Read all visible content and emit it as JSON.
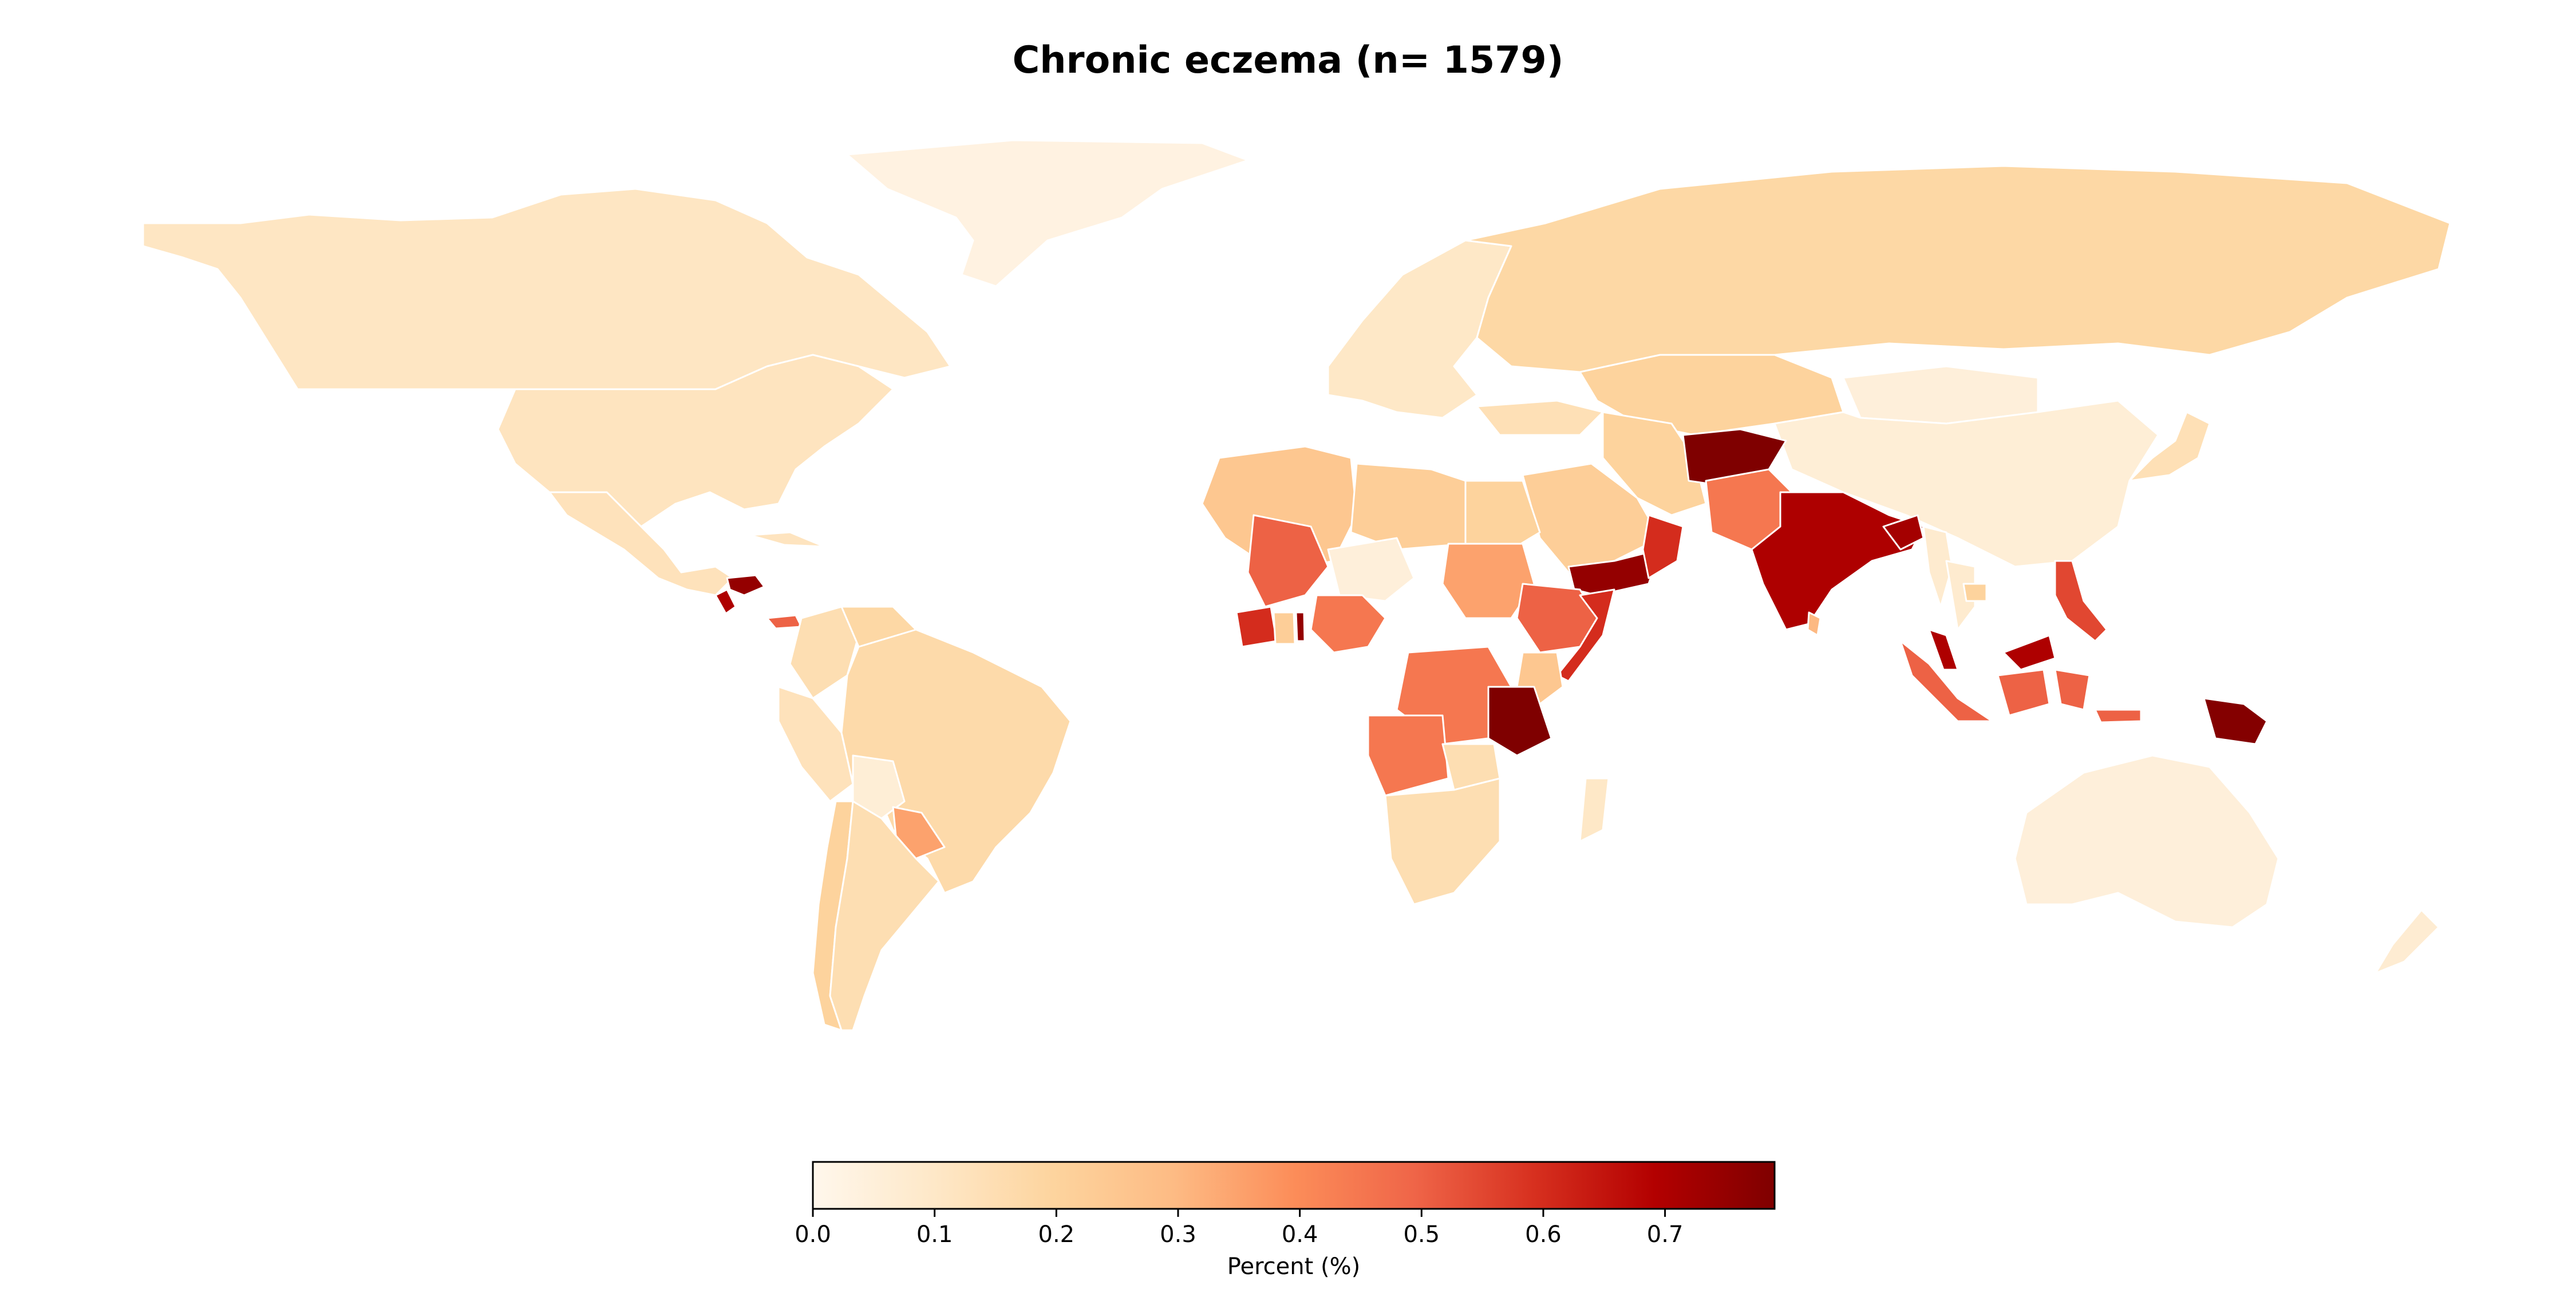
{
  "title": "Chronic eczema (n= 1579)",
  "colorbar": {
    "label": "Percent (%)",
    "ticks": [
      "0.0",
      "0.1",
      "0.2",
      "0.3",
      "0.4",
      "0.5",
      "0.6",
      "0.7"
    ],
    "min": 0.0,
    "max": 0.79,
    "colormap": "OrRd",
    "stops": [
      "#fff7ec",
      "#fee8c8",
      "#fdd49e",
      "#fdbb84",
      "#fc8d59",
      "#ef6548",
      "#d7301f",
      "#b30000",
      "#7f0000"
    ]
  },
  "chart_data": {
    "type": "choropleth",
    "title": "Chronic eczema (n= 1579)",
    "legend_label": "Percent (%)",
    "scale_range": [
      0.0,
      0.79
    ],
    "regions": [
      {
        "name": "Canada",
        "value": 0.11
      },
      {
        "name": "United States",
        "value": 0.12
      },
      {
        "name": "Mexico",
        "value": 0.13
      },
      {
        "name": "Greenland",
        "value": 0.03
      },
      {
        "name": "Honduras",
        "value": 0.75
      },
      {
        "name": "Guatemala",
        "value": 0.7
      },
      {
        "name": "Panama",
        "value": 0.5
      },
      {
        "name": "Cuba",
        "value": 0.12
      },
      {
        "name": "Colombia",
        "value": 0.15
      },
      {
        "name": "Venezuela",
        "value": 0.18
      },
      {
        "name": "Brazil",
        "value": 0.17
      },
      {
        "name": "Peru",
        "value": 0.13
      },
      {
        "name": "Bolivia",
        "value": 0.06
      },
      {
        "name": "Paraguay",
        "value": 0.35
      },
      {
        "name": "Chile",
        "value": 0.2
      },
      {
        "name": "Argentina",
        "value": 0.15
      },
      {
        "name": "Russia",
        "value": 0.18
      },
      {
        "name": "Kazakhstan",
        "value": 0.2
      },
      {
        "name": "Europe",
        "value": 0.1
      },
      {
        "name": "Turkey",
        "value": 0.14
      },
      {
        "name": "Iran",
        "value": 0.2
      },
      {
        "name": "Afghanistan",
        "value": 0.79
      },
      {
        "name": "Pakistan",
        "value": 0.45
      },
      {
        "name": "India",
        "value": 0.7
      },
      {
        "name": "Bangladesh",
        "value": 0.72
      },
      {
        "name": "Sri Lanka",
        "value": 0.3
      },
      {
        "name": "China",
        "value": 0.06
      },
      {
        "name": "Mongolia",
        "value": 0.05
      },
      {
        "name": "Japan",
        "value": 0.14
      },
      {
        "name": "Saudi Arabia",
        "value": 0.22
      },
      {
        "name": "Yemen",
        "value": 0.75
      },
      {
        "name": "Oman",
        "value": 0.6
      },
      {
        "name": "Algeria",
        "value": 0.25
      },
      {
        "name": "Libya",
        "value": 0.22
      },
      {
        "name": "Egypt",
        "value": 0.2
      },
      {
        "name": "Mali",
        "value": 0.5
      },
      {
        "name": "Niger",
        "value": 0.05
      },
      {
        "name": "Sudan",
        "value": 0.35
      },
      {
        "name": "Ethiopia",
        "value": 0.5
      },
      {
        "name": "Somalia",
        "value": 0.6
      },
      {
        "name": "Nigeria",
        "value": 0.45
      },
      {
        "name": "Ivory Coast",
        "value": 0.6
      },
      {
        "name": "Ghana",
        "value": 0.22
      },
      {
        "name": "Togo",
        "value": 0.75
      },
      {
        "name": "DR Congo",
        "value": 0.45
      },
      {
        "name": "Angola",
        "value": 0.45
      },
      {
        "name": "Tanzania",
        "value": 0.79
      },
      {
        "name": "Kenya",
        "value": 0.25
      },
      {
        "name": "Zambia",
        "value": 0.15
      },
      {
        "name": "South Africa",
        "value": 0.15
      },
      {
        "name": "Madagascar",
        "value": 0.1
      },
      {
        "name": "Myanmar",
        "value": 0.08
      },
      {
        "name": "Thailand",
        "value": 0.08
      },
      {
        "name": "Cambodia",
        "value": 0.2
      },
      {
        "name": "Malaysia",
        "value": 0.7
      },
      {
        "name": "Indonesia",
        "value": 0.5
      },
      {
        "name": "Philippines",
        "value": 0.55
      },
      {
        "name": "Papua New Guinea",
        "value": 0.78
      },
      {
        "name": "Australia",
        "value": 0.05
      },
      {
        "name": "New Zealand",
        "value": 0.07
      }
    ]
  }
}
